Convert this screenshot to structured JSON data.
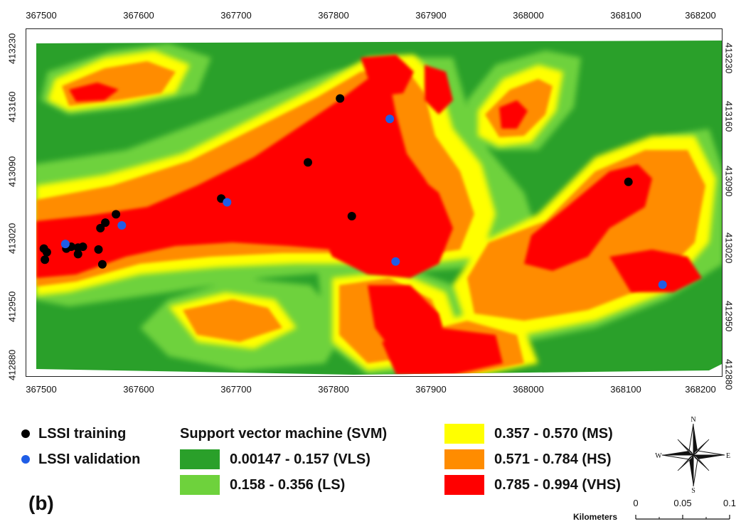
{
  "colors": {
    "vls": "#2aa02a",
    "ls": "#6ed23c",
    "ms": "#ffff00",
    "hs": "#ff8c00",
    "vhs": "#ff0000",
    "training": "#000000",
    "validation": "#1f5de6"
  },
  "map": {
    "x_ticks": [
      "367500",
      "367600",
      "367700",
      "367800",
      "367900",
      "368000",
      "368100",
      "368200"
    ],
    "y_ticks": [
      "413230",
      "413160",
      "413090",
      "413020",
      "412950",
      "412880"
    ],
    "training_points": [
      {
        "x": 367502,
        "y": 413020
      },
      {
        "x": 367505,
        "y": 413016
      },
      {
        "x": 367503,
        "y": 413008
      },
      {
        "x": 367525,
        "y": 413020
      },
      {
        "x": 367530,
        "y": 413022
      },
      {
        "x": 367537,
        "y": 413021
      },
      {
        "x": 367542,
        "y": 413022
      },
      {
        "x": 367537,
        "y": 413014
      },
      {
        "x": 367558,
        "y": 413019
      },
      {
        "x": 367562,
        "y": 413003
      },
      {
        "x": 367560,
        "y": 413042
      },
      {
        "x": 367565,
        "y": 413048
      },
      {
        "x": 367576,
        "y": 413057
      },
      {
        "x": 367684,
        "y": 413074
      },
      {
        "x": 367773,
        "y": 413113
      },
      {
        "x": 367806,
        "y": 413182
      },
      {
        "x": 367818,
        "y": 413055
      },
      {
        "x": 368102,
        "y": 413092
      }
    ],
    "validation_points": [
      {
        "x": 367524,
        "y": 413025
      },
      {
        "x": 367582,
        "y": 413045
      },
      {
        "x": 367690,
        "y": 413070
      },
      {
        "x": 367857,
        "y": 413160
      },
      {
        "x": 367863,
        "y": 413006
      },
      {
        "x": 368137,
        "y": 412981
      }
    ]
  },
  "legend": {
    "training_label": "LSSI training",
    "validation_label": "LSSI validation",
    "title": "Support vector machine (SVM)",
    "classes": [
      {
        "label": "0.00147 - 0.157 (VLS)",
        "color": "#2aa02a"
      },
      {
        "label": "0.158 - 0.356 (LS)",
        "color": "#6ed23c"
      },
      {
        "label": "0.357 - 0.570 (MS)",
        "color": "#ffff00"
      },
      {
        "label": "0.571 - 0.784 (HS)",
        "color": "#ff8c00"
      },
      {
        "label": "0.785 - 0.994 (VHS)",
        "color": "#ff0000"
      }
    ]
  },
  "panel_label": "(b)",
  "north_arrow": {
    "n": "N",
    "s": "S",
    "e": "E",
    "w": "W"
  },
  "scale_bar": {
    "unit": "Kilometers",
    "ticks": [
      "0",
      "0.05",
      "0.1"
    ]
  }
}
